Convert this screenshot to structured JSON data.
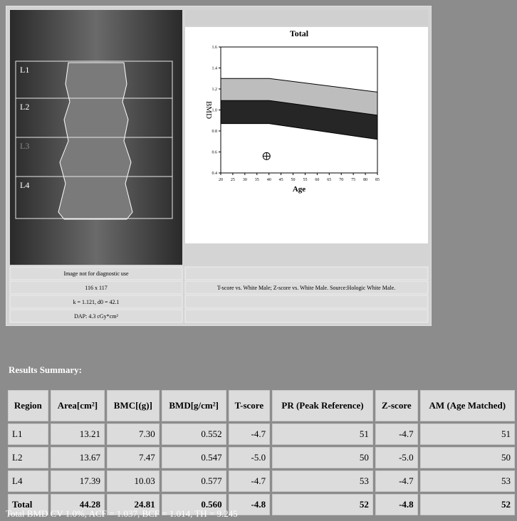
{
  "image": {
    "regions": [
      "L1",
      "L2",
      "L3",
      "L4"
    ]
  },
  "info": {
    "left": [
      "Image not for diagnostic use",
      "116 x 117",
      "k = 1.121, d0 = 42.1",
      "DAP: 4.3 cGy*cm²"
    ],
    "right": [
      "T-score vs. White Male; Z-score vs. White Male. Source:Hologic White Male."
    ]
  },
  "chart_data": {
    "type": "band",
    "title": "Total",
    "x_label": "Age",
    "y_label": "BMD",
    "x": [
      20,
      40,
      85
    ],
    "series": [
      {
        "color": "#bdbdbd",
        "values": [
          1.3,
          1.3,
          1.17
        ]
      },
      {
        "color": "#262626",
        "values": [
          1.09,
          1.09,
          0.95
        ]
      },
      {
        "color": "#ffffff",
        "values": [
          0.87,
          0.87,
          0.72
        ]
      }
    ],
    "point": {
      "x": 39,
      "y": 0.56
    },
    "xlim": [
      20,
      85
    ],
    "xticks": [
      20,
      25,
      30,
      35,
      40,
      45,
      50,
      55,
      60,
      65,
      70,
      75,
      80,
      85
    ],
    "ylim": [
      0.4,
      1.6
    ],
    "yticks": [
      0.4,
      0.6,
      0.8,
      {
        "value": 1,
        "label": "1.0"
      },
      1.2,
      1.4,
      1.6
    ]
  },
  "results": {
    "title": "Results Summary:",
    "header": [
      "Region",
      "Area[cm²]",
      "BMC[(g)]",
      "BMD[g/cm²]",
      "T-score",
      "PR (Peak Reference)",
      "Z-score",
      "AM (Age Matched)"
    ],
    "rows": [
      [
        "L1",
        "13.21",
        "7.30",
        "0.552",
        "-4.7",
        "51",
        "-4.7",
        "51"
      ],
      [
        "L2",
        "13.67",
        "7.47",
        "0.547",
        "-5.0",
        "50",
        "-5.0",
        "50"
      ],
      [
        "L4",
        "17.39",
        "10.03",
        "0.577",
        "-4.7",
        "53",
        "-4.7",
        "53"
      ],
      [
        "Total",
        "44.28",
        "24.81",
        "0.560",
        "-4.8",
        "52",
        "-4.8",
        "52"
      ]
    ],
    "footer": "Total BMD CV 1.0%, ACF = 1.037, BCF = 1.014, TH = 9.245"
  }
}
